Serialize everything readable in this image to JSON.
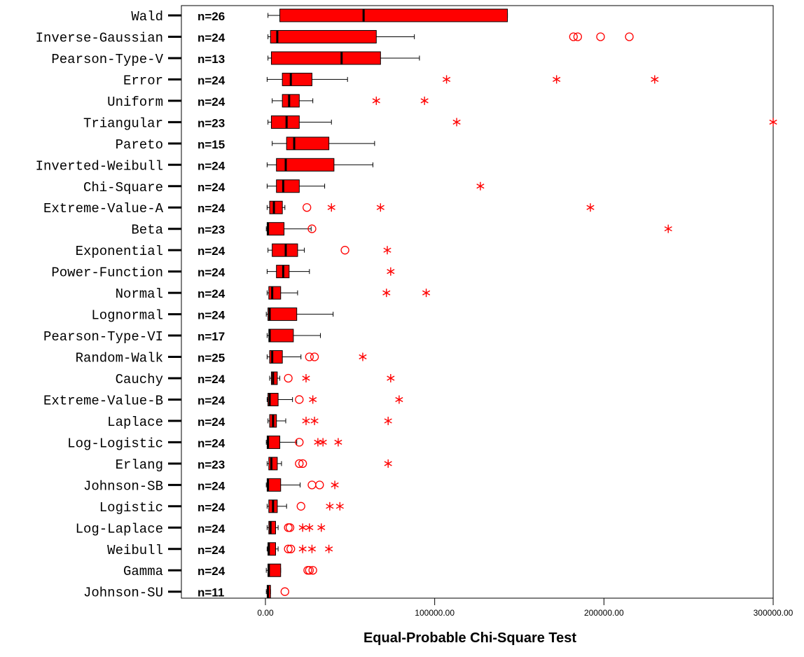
{
  "chart_data": {
    "type": "boxplot",
    "orientation": "horizontal",
    "xlabel": "Equal-Probable Chi-Square Test",
    "xlim": [
      -50000,
      300000
    ],
    "xticks": [
      0,
      100000,
      200000,
      300000
    ],
    "xtick_labels": [
      "0.00",
      "100000.00",
      "200000.00",
      "300000.00"
    ],
    "grid": false,
    "colors": {
      "box": "#ff0000",
      "outlier": "#ff0000",
      "median": "#000000",
      "whisker": "#000000"
    },
    "series": [
      {
        "label": "Wald",
        "n_label": "n=26",
        "whisker_low": 1500,
        "q1": 8500,
        "median": 58000,
        "q3": 143000,
        "whisker_high": 143000,
        "outliers": [],
        "extremes": []
      },
      {
        "label": "Inverse-Gaussian",
        "n_label": "n=24",
        "whisker_low": 1500,
        "q1": 3000,
        "median": 7000,
        "q3": 65500,
        "whisker_high": 88000,
        "outliers": [
          182000,
          184500,
          198000,
          215000
        ],
        "extremes": []
      },
      {
        "label": "Pearson-Type-V",
        "n_label": "n=13",
        "whisker_low": 1500,
        "q1": 3500,
        "median": 45000,
        "q3": 68000,
        "whisker_high": 91000,
        "outliers": [],
        "extremes": []
      },
      {
        "label": "Error",
        "n_label": "n=24",
        "whisker_low": 1000,
        "q1": 10000,
        "median": 15000,
        "q3": 27500,
        "whisker_high": 48500,
        "outliers": [],
        "extremes": [
          107000,
          172000,
          230000
        ]
      },
      {
        "label": "Uniform",
        "n_label": "n=24",
        "whisker_low": 4000,
        "q1": 10000,
        "median": 14000,
        "q3": 20000,
        "whisker_high": 28000,
        "outliers": [],
        "extremes": [
          65500,
          94000
        ]
      },
      {
        "label": "Triangular",
        "n_label": "n=23",
        "whisker_low": 1500,
        "q1": 3500,
        "median": 12500,
        "q3": 20000,
        "whisker_high": 39000,
        "outliers": [],
        "extremes": [
          113000,
          300000
        ]
      },
      {
        "label": "Pareto",
        "n_label": "n=15",
        "whisker_low": 4000,
        "q1": 12500,
        "median": 17000,
        "q3": 37500,
        "whisker_high": 64500,
        "outliers": [],
        "extremes": []
      },
      {
        "label": "Inverted-Weibull",
        "n_label": "n=24",
        "whisker_low": 1000,
        "q1": 6500,
        "median": 12000,
        "q3": 40500,
        "whisker_high": 63500,
        "outliers": [],
        "extremes": []
      },
      {
        "label": "Chi-Square",
        "n_label": "n=24",
        "whisker_low": 1000,
        "q1": 6500,
        "median": 10500,
        "q3": 20000,
        "whisker_high": 35000,
        "outliers": [],
        "extremes": [
          127000
        ]
      },
      {
        "label": "Extreme-Value-A",
        "n_label": "n=24",
        "whisker_low": 1000,
        "q1": 2500,
        "median": 5000,
        "q3": 10000,
        "whisker_high": 11500,
        "outliers": [
          24500
        ],
        "extremes": [
          39000,
          68000,
          192000
        ]
      },
      {
        "label": "Beta",
        "n_label": "n=23",
        "whisker_low": 500,
        "q1": 1000,
        "median": 1500,
        "q3": 11000,
        "whisker_high": 27000,
        "outliers": [
          27500
        ],
        "extremes": [
          238000
        ]
      },
      {
        "label": "Exponential",
        "n_label": "n=24",
        "whisker_low": 1500,
        "q1": 4000,
        "median": 12000,
        "q3": 19000,
        "whisker_high": 23000,
        "outliers": [
          47000
        ],
        "extremes": [
          72000
        ]
      },
      {
        "label": "Power-Function",
        "n_label": "n=24",
        "whisker_low": 1000,
        "q1": 6500,
        "median": 10500,
        "q3": 14000,
        "whisker_high": 26000,
        "outliers": [],
        "extremes": [
          74000
        ]
      },
      {
        "label": "Normal",
        "n_label": "n=24",
        "whisker_low": 1000,
        "q1": 2000,
        "median": 4000,
        "q3": 9000,
        "whisker_high": 19000,
        "outliers": [],
        "extremes": [
          71500,
          95000
        ]
      },
      {
        "label": "Lognormal",
        "n_label": "n=24",
        "whisker_low": 500,
        "q1": 1500,
        "median": 2500,
        "q3": 18500,
        "whisker_high": 40000,
        "outliers": [],
        "extremes": []
      },
      {
        "label": "Pearson-Type-VI",
        "n_label": "n=17",
        "whisker_low": 1000,
        "q1": 2000,
        "median": 2500,
        "q3": 16500,
        "whisker_high": 32500,
        "outliers": [],
        "extremes": []
      },
      {
        "label": "Random-Walk",
        "n_label": "n=25",
        "whisker_low": 1000,
        "q1": 2500,
        "median": 4000,
        "q3": 10000,
        "whisker_high": 21000,
        "outliers": [
          26000,
          29000
        ],
        "extremes": [
          57500
        ]
      },
      {
        "label": "Cauchy",
        "n_label": "n=24",
        "whisker_low": 2500,
        "q1": 3500,
        "median": 4500,
        "q3": 7000,
        "whisker_high": 8500,
        "outliers": [
          13500
        ],
        "extremes": [
          24000,
          74000
        ]
      },
      {
        "label": "Extreme-Value-B",
        "n_label": "n=24",
        "whisker_low": 1000,
        "q1": 1500,
        "median": 2500,
        "q3": 7500,
        "whisker_high": 16000,
        "outliers": [
          20000
        ],
        "extremes": [
          28000,
          79000
        ]
      },
      {
        "label": "Laplace",
        "n_label": "n=24",
        "whisker_low": 1500,
        "q1": 2500,
        "median": 4500,
        "q3": 6500,
        "whisker_high": 12000,
        "outliers": [],
        "extremes": [
          24000,
          29000,
          72500
        ]
      },
      {
        "label": "Log-Logistic",
        "n_label": "n=24",
        "whisker_low": 500,
        "q1": 1000,
        "median": 1500,
        "q3": 8500,
        "whisker_high": 18500,
        "outliers": [
          20000
        ],
        "extremes": [
          31000,
          34000,
          43000
        ]
      },
      {
        "label": "Erlang",
        "n_label": "n=23",
        "whisker_low": 1000,
        "q1": 2000,
        "median": 3500,
        "q3": 7000,
        "whisker_high": 9500,
        "outliers": [
          20000,
          22000
        ],
        "extremes": [
          72500
        ]
      },
      {
        "label": "Johnson-SB",
        "n_label": "n=24",
        "whisker_low": 500,
        "q1": 1000,
        "median": 1500,
        "q3": 9000,
        "whisker_high": 20500,
        "outliers": [
          27500,
          32000
        ],
        "extremes": [
          41000
        ]
      },
      {
        "label": "Logistic",
        "n_label": "n=24",
        "whisker_low": 1000,
        "q1": 2000,
        "median": 4500,
        "q3": 7000,
        "whisker_high": 12500,
        "outliers": [
          21000
        ],
        "extremes": [
          38000,
          44000
        ]
      },
      {
        "label": "Log-Laplace",
        "n_label": "n=24",
        "whisker_low": 1000,
        "q1": 2000,
        "median": 3000,
        "q3": 6000,
        "whisker_high": 7500,
        "outliers": [
          13500,
          14500
        ],
        "extremes": [
          22000,
          26000,
          33000
        ]
      },
      {
        "label": "Weibull",
        "n_label": "n=24",
        "whisker_low": 1000,
        "q1": 1500,
        "median": 2000,
        "q3": 6000,
        "whisker_high": 7500,
        "outliers": [
          13500,
          15000
        ],
        "extremes": [
          22000,
          27500,
          37500
        ]
      },
      {
        "label": "Gamma",
        "n_label": "n=24",
        "whisker_low": 500,
        "q1": 1500,
        "median": 2000,
        "q3": 9000,
        "whisker_high": 9000,
        "outliers": [
          25000,
          26000,
          28000
        ],
        "extremes": []
      },
      {
        "label": "Johnson-SU",
        "n_label": "n=11",
        "whisker_low": 500,
        "q1": 1000,
        "median": 1500,
        "q3": 3000,
        "whisker_high": 3000,
        "outliers": [
          11500
        ],
        "extremes": []
      }
    ]
  }
}
